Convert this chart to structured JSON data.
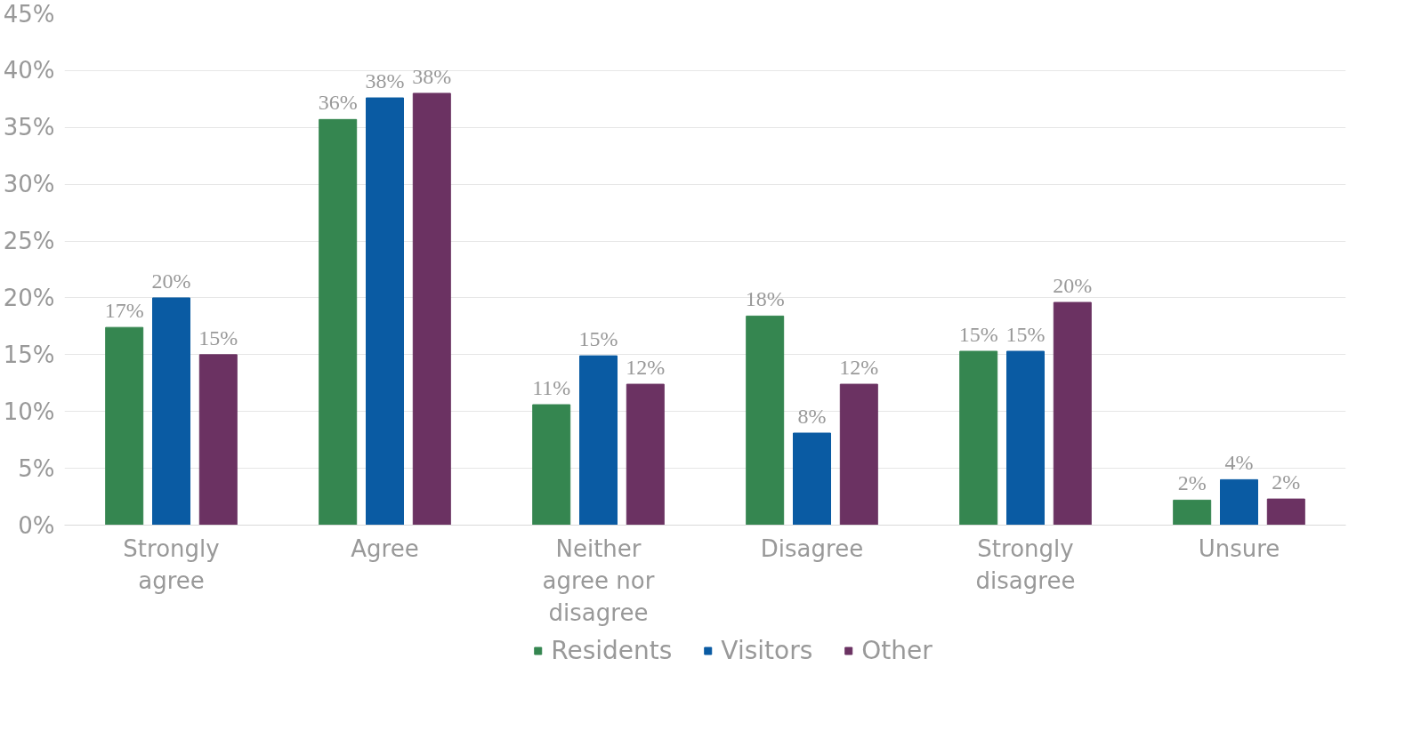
{
  "chart_data": {
    "type": "bar",
    "categories": [
      "Strongly agree",
      "Agree",
      "Neither agree nor disagree",
      "Disagree",
      "Strongly disagree",
      "Unsure"
    ],
    "series": [
      {
        "name": "Residents",
        "color": "#358650",
        "values": [
          17.4,
          35.7,
          10.6,
          18.4,
          15.3,
          2.2
        ],
        "value_labels": [
          "17%",
          "36%",
          "11%",
          "18%",
          "15%",
          "2%"
        ]
      },
      {
        "name": "Visitors",
        "color": "#0a5ba3",
        "values": [
          20.0,
          37.6,
          14.9,
          8.1,
          15.3,
          4.0
        ],
        "value_labels": [
          "20%",
          "38%",
          "15%",
          "8%",
          "15%",
          "4%"
        ]
      },
      {
        "name": "Other",
        "color": "#6b3262",
        "values": [
          15.0,
          38.0,
          12.4,
          12.4,
          19.6,
          2.3
        ],
        "value_labels": [
          "15%",
          "38%",
          "12%",
          "12%",
          "20%",
          "2%"
        ]
      }
    ],
    "ylim": [
      0,
      45
    ],
    "yticks": [
      {
        "value": 0,
        "label": "0%"
      },
      {
        "value": 5,
        "label": "5%"
      },
      {
        "value": 10,
        "label": "10%"
      },
      {
        "value": 15,
        "label": "15%"
      },
      {
        "value": 20,
        "label": "20%"
      },
      {
        "value": 25,
        "label": "25%"
      },
      {
        "value": 30,
        "label": "30%"
      },
      {
        "value": 35,
        "label": "35%"
      },
      {
        "value": 40,
        "label": "40%"
      },
      {
        "value": 45,
        "label": "45%"
      }
    ],
    "grid": "y",
    "legend": "bottom"
  }
}
